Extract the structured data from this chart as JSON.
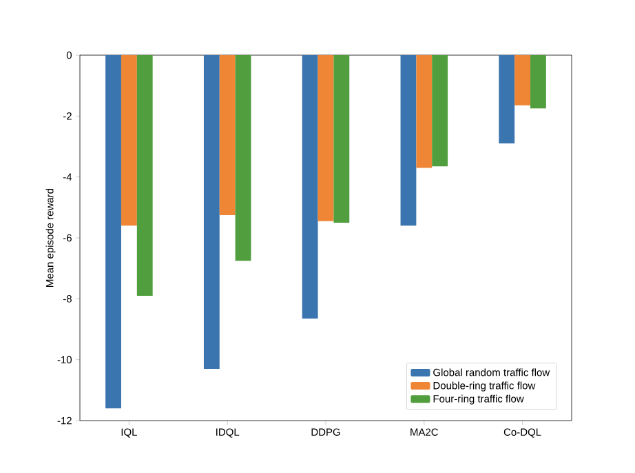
{
  "chart_data": {
    "type": "bar",
    "ylabel": "Mean episode reward",
    "categories": [
      "IQL",
      "IDQL",
      "DDPG",
      "MA2C",
      "Co-DQL"
    ],
    "series": [
      {
        "name": "Global random traffic flow",
        "color": "#3b75af",
        "values": [
          -11.6,
          -10.3,
          -8.65,
          -5.6,
          -2.9
        ]
      },
      {
        "name": "Double-ring traffic flow",
        "color": "#ef8636",
        "values": [
          -5.6,
          -5.25,
          -5.45,
          -3.7,
          -1.65
        ]
      },
      {
        "name": "Four-ring traffic flow",
        "color": "#519e3e",
        "values": [
          -7.9,
          -6.75,
          -5.5,
          -3.65,
          -1.75
        ]
      }
    ],
    "ylim": [
      -12,
      0
    ],
    "yticks": [
      -12,
      -10,
      -8,
      -6,
      -4,
      -2,
      0
    ],
    "grid": false,
    "legend": "bottom right"
  }
}
